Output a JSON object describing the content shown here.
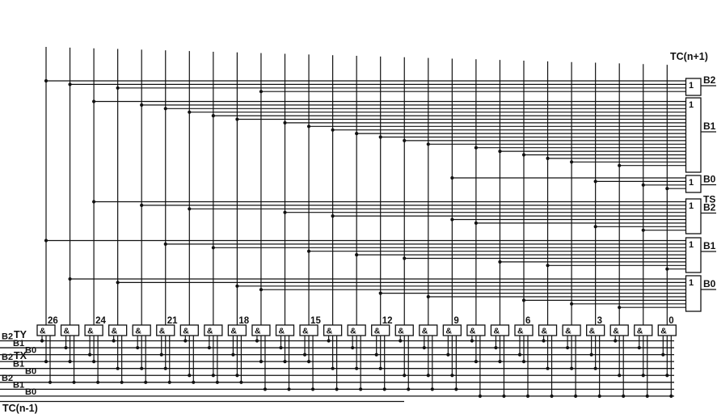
{
  "diagram": {
    "labels": {
      "carry_out": "TC(n+1)",
      "sum_section": "TS",
      "carry_in": "TC(n-1)",
      "operand_y_tag": "TY",
      "operand_x_tag": "TX"
    },
    "and_gate_symbol": "&",
    "or_gate_symbol": "1",
    "gate_count": 27,
    "gate_numbers": [
      {
        "gate": 0,
        "label": "26"
      },
      {
        "gate": 2,
        "label": "24"
      },
      {
        "gate": 5,
        "label": "21"
      },
      {
        "gate": 8,
        "label": "18"
      },
      {
        "gate": 11,
        "label": "15"
      },
      {
        "gate": 14,
        "label": "12"
      },
      {
        "gate": 17,
        "label": "9"
      },
      {
        "gate": 20,
        "label": "6"
      },
      {
        "gate": 23,
        "label": "3"
      },
      {
        "gate": 26,
        "label": "0"
      }
    ],
    "bus_lines": [
      {
        "label": "B2",
        "tag": "TY"
      },
      {
        "label": "B1"
      },
      {
        "label": "B0"
      },
      {
        "label": "B2",
        "tag": "TX"
      },
      {
        "label": "B1"
      },
      {
        "label": "B0"
      },
      {
        "label": "B2"
      },
      {
        "label": "B1"
      },
      {
        "label": "B0"
      }
    ],
    "gate_taps": [
      [
        0,
        3,
        6
      ],
      [
        1,
        3,
        6
      ],
      [
        2,
        3,
        6
      ],
      [
        0,
        4,
        6
      ],
      [
        1,
        4,
        6
      ],
      [
        2,
        4,
        6
      ],
      [
        0,
        5,
        6
      ],
      [
        1,
        5,
        6
      ],
      [
        2,
        5,
        6
      ],
      [
        0,
        3,
        7
      ],
      [
        1,
        3,
        7
      ],
      [
        2,
        3,
        7
      ],
      [
        0,
        4,
        7
      ],
      [
        1,
        4,
        7
      ],
      [
        2,
        4,
        7
      ],
      [
        0,
        5,
        7
      ],
      [
        1,
        5,
        7
      ],
      [
        2,
        5,
        7
      ],
      [
        0,
        3,
        8
      ],
      [
        1,
        3,
        8
      ],
      [
        2,
        3,
        8
      ],
      [
        0,
        4,
        8
      ],
      [
        1,
        4,
        8
      ],
      [
        2,
        4,
        8
      ],
      [
        0,
        5,
        8
      ],
      [
        1,
        5,
        8
      ],
      [
        2,
        5,
        8
      ]
    ],
    "or_gates": [
      {
        "id": "tc-b2",
        "section": "TC(n+1)",
        "label": "B2",
        "inputs": [
          0,
          1,
          3,
          9
        ]
      },
      {
        "id": "tc-b1",
        "section": "TC(n+1)",
        "label": "B1",
        "inputs": [
          2,
          4,
          5,
          6,
          7,
          8,
          10,
          11,
          12,
          13,
          14,
          15,
          16,
          18,
          19,
          20,
          21,
          22,
          24
        ]
      },
      {
        "id": "tc-b0",
        "section": "TC(n+1)",
        "label": "B0",
        "inputs": [
          17,
          23,
          25,
          26
        ]
      },
      {
        "id": "ts-b2",
        "section": "TS",
        "label": "B2",
        "inputs": [
          2,
          4,
          6,
          10,
          12,
          17,
          18,
          23,
          25
        ]
      },
      {
        "id": "ts-b1",
        "section": "TS",
        "label": "B1",
        "inputs": [
          0,
          5,
          7,
          11,
          13,
          15,
          19,
          21,
          26
        ]
      },
      {
        "id": "ts-b0",
        "section": "TS",
        "label": "B0",
        "inputs": [
          1,
          3,
          8,
          9,
          14,
          16,
          20,
          22,
          24
        ]
      }
    ],
    "colors": {
      "ink": "#111111",
      "background": "#ffffff"
    }
  }
}
